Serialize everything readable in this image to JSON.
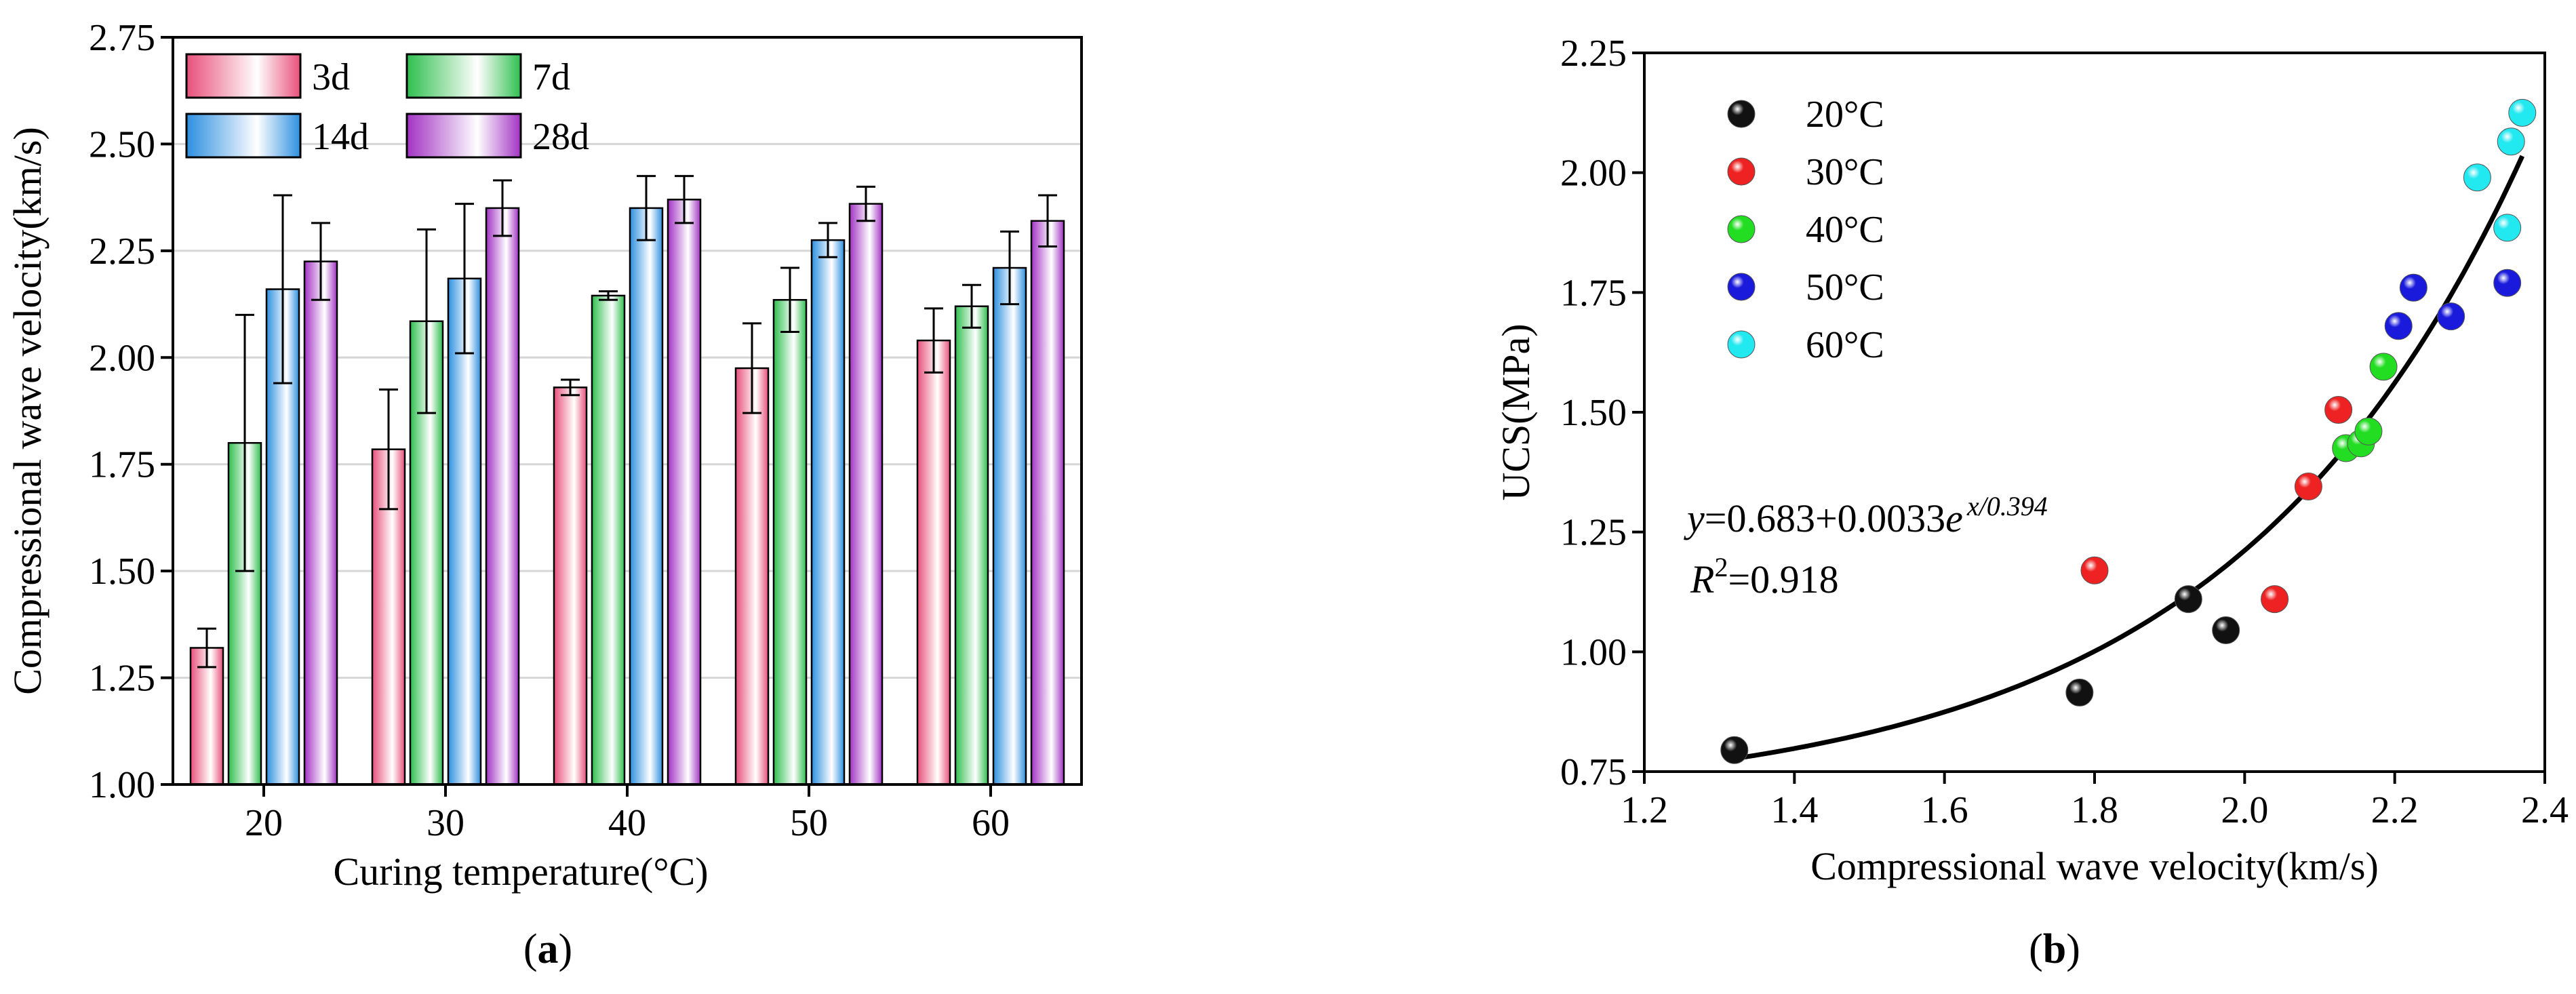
{
  "panel_a_label": "a",
  "panel_b_label": "b",
  "chart_data": [
    {
      "type": "bar",
      "panel": "a",
      "xlabel": "Curing temperature(°C)",
      "ylabel": "Compressional wave velocity(km/s)",
      "ylim": [
        1.0,
        2.75
      ],
      "yticks": [
        "1.00",
        "1.25",
        "1.50",
        "1.75",
        "2.00",
        "2.25",
        "2.50",
        "2.75"
      ],
      "categories": [
        "20",
        "30",
        "40",
        "50",
        "60"
      ],
      "grid": true,
      "legend_position": "top-left",
      "series": [
        {
          "name": "3d",
          "color": "#e8507a",
          "values": [
            1.32,
            1.785,
            1.93,
            1.975,
            2.04
          ],
          "errors": [
            0.045,
            0.14,
            0.018,
            0.105,
            0.075
          ]
        },
        {
          "name": "7d",
          "color": "#2fbf4f",
          "values": [
            1.8,
            2.085,
            2.145,
            2.135,
            2.12
          ],
          "errors": [
            0.3,
            0.215,
            0.01,
            0.075,
            0.05
          ]
        },
        {
          "name": "14d",
          "color": "#2d8fe0",
          "values": [
            2.16,
            2.185,
            2.35,
            2.275,
            2.21
          ],
          "errors": [
            0.22,
            0.175,
            0.075,
            0.04,
            0.085
          ]
        },
        {
          "name": "28d",
          "color": "#a233c4",
          "values": [
            2.225,
            2.35,
            2.37,
            2.36,
            2.32
          ],
          "errors": [
            0.09,
            0.065,
            0.055,
            0.04,
            0.06
          ]
        }
      ]
    },
    {
      "type": "scatter",
      "panel": "b",
      "xlabel": "Compressional wave velocity(km/s)",
      "ylabel": "UCS(MPa)",
      "xlim": [
        1.2,
        2.4
      ],
      "ylim": [
        0.75,
        2.25
      ],
      "xticks": [
        "1.2",
        "1.4",
        "1.6",
        "1.8",
        "2.0",
        "2.2",
        "2.4"
      ],
      "yticks": [
        "0.75",
        "1.00",
        "1.25",
        "1.50",
        "1.75",
        "2.00",
        "2.25"
      ],
      "legend_position": "top-left",
      "series": [
        {
          "name": "20°C",
          "color": "#111111",
          "x": [
            1.32,
            1.78,
            1.925,
            1.975
          ],
          "y": [
            0.795,
            0.915,
            1.11,
            1.045
          ]
        },
        {
          "name": "30°C",
          "color": "#ee2222",
          "x": [
            1.8,
            2.04,
            2.085,
            2.125
          ],
          "y": [
            1.17,
            1.11,
            1.345,
            1.505
          ]
        },
        {
          "name": "40°C",
          "color": "#22dd22",
          "x": [
            2.135,
            2.155,
            2.165,
            2.185
          ],
          "y": [
            1.425,
            1.435,
            1.46,
            1.595
          ]
        },
        {
          "name": "50°C",
          "color": "#1a1adc",
          "x": [
            2.205,
            2.225,
            2.275,
            2.35
          ],
          "y": [
            1.68,
            1.76,
            1.7,
            1.77
          ]
        },
        {
          "name": "60°C",
          "color": "#22e8f0",
          "x": [
            2.31,
            2.35,
            2.355,
            2.37
          ],
          "y": [
            1.99,
            1.885,
            2.065,
            2.125
          ]
        }
      ],
      "fit": {
        "a": 0.683,
        "b": 0.0033,
        "c": 0.394,
        "x_range": [
          1.32,
          2.37
        ]
      },
      "annotation": {
        "y_var": "y",
        "eq_prefix": "=0.683+0.0033",
        "e_char": "e",
        "exponent": "x/0.394",
        "r_label": "R",
        "r_sup": "2",
        "r_value": "=0.918"
      }
    }
  ]
}
